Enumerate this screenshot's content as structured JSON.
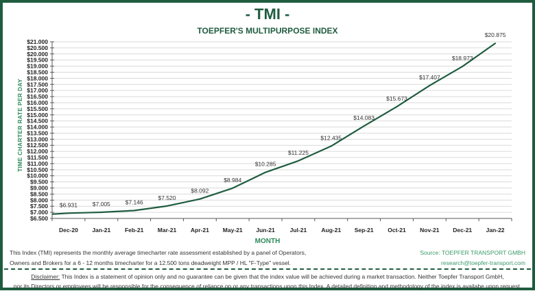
{
  "header": {
    "title": "- TMI -",
    "subtitle": "TOEPFER'S MULTIPURPOSE INDEX"
  },
  "chart_data": {
    "type": "line",
    "title": "TOEPFER'S MULTIPURPOSE INDEX",
    "xlabel": "MONTH",
    "ylabel": "TIME CHARTER RATE PER DAY",
    "categories": [
      "Dec-20",
      "Jan-21",
      "Feb-21",
      "Mar-21",
      "Apr-21",
      "May-21",
      "Jun-21",
      "Jul-21",
      "Aug-21",
      "Sep-21",
      "Oct-21",
      "Nov-21",
      "Dec-21",
      "Jan-22"
    ],
    "values": [
      6931,
      7005,
      7146,
      7520,
      8092,
      8984,
      10285,
      11225,
      12435,
      14083,
      15673,
      17407,
      18973,
      20875
    ],
    "data_labels": [
      "$6.931",
      "$7.005",
      "$7.146",
      "$7.520",
      "$8.092",
      "$8.984",
      "$10.285",
      "$11.225",
      "$12.435",
      "$14.083",
      "$15.673",
      "$17.407",
      "$18.973",
      "$20.875"
    ],
    "ylim": [
      6500,
      21000
    ],
    "ytick_step": 500,
    "ytick_format": "$#.###",
    "grid": true,
    "line_color": "#1f5c3f"
  },
  "footer": {
    "description_1": "This Index (TMI) represents the monthly average timecharter rate assessment established by a panel of Operators,",
    "description_2": "Owners and Brokers for a 6 - 12 months timecharter for a 12.500 tons deadweight MPP / HL \"F-Type\" vessel.",
    "source": "Source: TOEPFER TRANSPORT GMBH",
    "email": "research@toepfer-transport.com",
    "disclaimer_label": "Disclaimer:",
    "disclaimer_1": " This Index is a statement of opinion only and no guarantee can be given that the index value will be achieved during a market transaction. Neither Toepfer Transport GmbH,",
    "disclaimer_2": "nor its Directors or employees will be responsible for the consequence of reliance on or any transactions upon this Index.  A detailed definition and methodology of the index is availabe upon request."
  }
}
